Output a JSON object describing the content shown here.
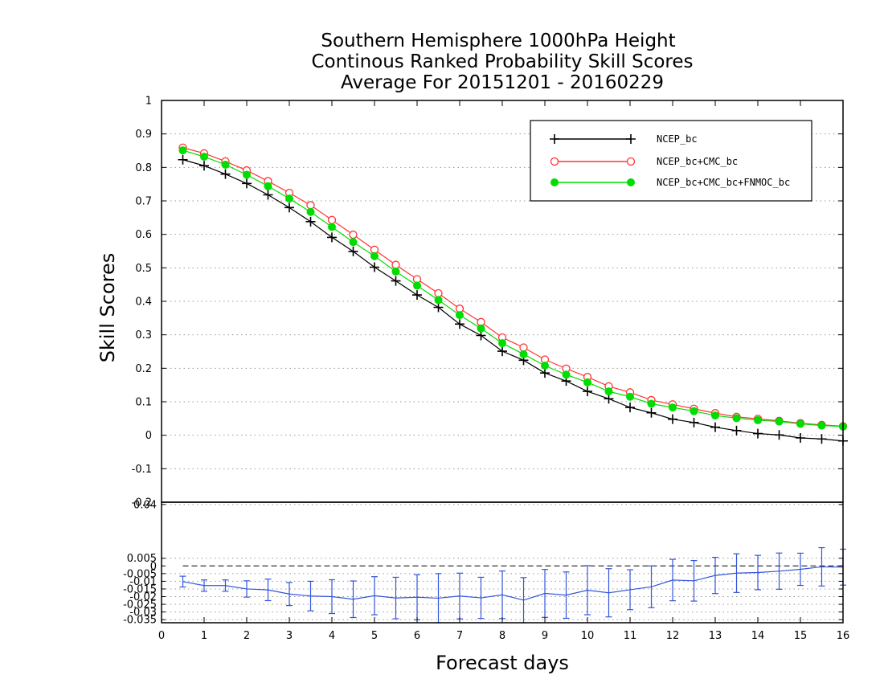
{
  "titles": {
    "line1": "Southern Hemisphere 1000hPa Height",
    "line2": "Continous Ranked Probability Skill Scores",
    "line3": "Average For 20151201 - 20160229"
  },
  "chart_data": [
    {
      "type": "line",
      "panel": "main",
      "ylabel": "Skill Scores",
      "ylim": [
        -0.2,
        1
      ],
      "yticks": [
        "1",
        "0.9",
        "0.8",
        "0.7",
        "0.6",
        "0.5",
        "0.4",
        "0.3",
        "0.2",
        "0.1",
        "0",
        "-0.1",
        "-0.2"
      ],
      "xlim": [
        0,
        16
      ],
      "grid": "horizontal dotted",
      "legend_position": "top-right",
      "x": [
        0.5,
        1,
        1.5,
        2,
        2.5,
        3,
        3.5,
        4,
        4.5,
        5,
        5.5,
        6,
        6.5,
        7,
        7.5,
        8,
        8.5,
        9,
        9.5,
        10,
        10.5,
        11,
        11.5,
        12,
        12.5,
        13,
        13.5,
        14,
        14.5,
        15,
        15.5,
        16
      ],
      "series": [
        {
          "name": "NCEP_bc",
          "color": "#000000",
          "marker": "plus",
          "values": [
            0.823,
            0.805,
            0.78,
            0.752,
            0.718,
            0.68,
            0.638,
            0.591,
            0.549,
            0.502,
            0.461,
            0.419,
            0.382,
            0.332,
            0.298,
            0.251,
            0.224,
            0.186,
            0.162,
            0.131,
            0.109,
            0.083,
            0.067,
            0.048,
            0.038,
            0.024,
            0.014,
            0.005,
            0.001,
            -0.008,
            -0.011,
            -0.017
          ]
        },
        {
          "name": "NCEP_bc+CMC_bc",
          "color": "#ff3333",
          "marker": "open-circle",
          "values": [
            0.859,
            0.842,
            0.818,
            0.791,
            0.759,
            0.724,
            0.687,
            0.643,
            0.599,
            0.554,
            0.509,
            0.466,
            0.424,
            0.378,
            0.338,
            0.292,
            0.262,
            0.226,
            0.199,
            0.174,
            0.146,
            0.128,
            0.105,
            0.092,
            0.079,
            0.066,
            0.055,
            0.049,
            0.043,
            0.036,
            0.031,
            0.027
          ]
        },
        {
          "name": "NCEP_bc+CMC_bc+FNMOC_bc",
          "color": "#00dd00",
          "marker": "filled-circle",
          "values": [
            0.851,
            0.832,
            0.808,
            0.778,
            0.744,
            0.707,
            0.667,
            0.622,
            0.577,
            0.535,
            0.489,
            0.447,
            0.404,
            0.359,
            0.319,
            0.275,
            0.242,
            0.208,
            0.181,
            0.158,
            0.131,
            0.115,
            0.094,
            0.083,
            0.072,
            0.059,
            0.051,
            0.045,
            0.041,
            0.034,
            0.029,
            0.026
          ]
        }
      ]
    },
    {
      "type": "line",
      "panel": "difference",
      "xlabel": "Forecast days",
      "ylim": [
        -0.037,
        0.0415
      ],
      "yticks": [
        "0.04",
        "0.005",
        "0",
        "-0.005",
        "-0.01",
        "-0.015",
        "-0.02",
        "-0.025",
        "-0.03",
        "-0.035"
      ],
      "xticks": [
        "0",
        "1",
        "2",
        "3",
        "4",
        "5",
        "6",
        "7",
        "8",
        "9",
        "10",
        "11",
        "12",
        "13",
        "14",
        "15",
        "16"
      ],
      "xlim": [
        0,
        16
      ],
      "grid": "horizontal dotted",
      "zero_line": "dashed",
      "x": [
        0.5,
        1,
        1.5,
        2,
        2.5,
        3,
        3.5,
        4,
        4.5,
        5,
        5.5,
        6,
        6.5,
        7,
        7.5,
        8,
        8.5,
        9,
        9.5,
        10,
        10.5,
        11,
        11.5,
        12,
        12.5,
        13,
        13.5,
        14,
        14.5,
        15,
        15.5,
        16
      ],
      "series": [
        {
          "color": "#3355dd",
          "marker": "error-bar",
          "values": [
            -0.0102,
            -0.0128,
            -0.0128,
            -0.015,
            -0.0156,
            -0.0183,
            -0.0196,
            -0.02,
            -0.0217,
            -0.0194,
            -0.0209,
            -0.0204,
            -0.021,
            -0.0196,
            -0.0208,
            -0.0188,
            -0.0223,
            -0.0179,
            -0.019,
            -0.0158,
            -0.0175,
            -0.0155,
            -0.0136,
            -0.0092,
            -0.0097,
            -0.0062,
            -0.0047,
            -0.0043,
            -0.0034,
            -0.0022,
            -0.0006,
            -0.0008
          ],
          "lower": [
            -0.0137,
            -0.0165,
            -0.0165,
            -0.0203,
            -0.0226,
            -0.0258,
            -0.0292,
            -0.031,
            -0.0336,
            -0.0318,
            -0.0344,
            -0.0351,
            -0.037,
            -0.0345,
            -0.0342,
            -0.0343,
            -0.037,
            -0.0335,
            -0.0341,
            -0.0318,
            -0.0332,
            -0.0285,
            -0.0272,
            -0.0227,
            -0.0229,
            -0.018,
            -0.0173,
            -0.0155,
            -0.0152,
            -0.0127,
            -0.0131,
            -0.0125
          ],
          "upper": [
            -0.0067,
            -0.0091,
            -0.0091,
            -0.0097,
            -0.0086,
            -0.0108,
            -0.01,
            -0.009,
            -0.0098,
            -0.007,
            -0.0074,
            -0.0057,
            -0.005,
            -0.0047,
            -0.0074,
            -0.0033,
            -0.0076,
            -0.0023,
            -0.0039,
            0.0002,
            -0.0018,
            -0.0025,
            -0.0,
            0.0043,
            0.0035,
            0.0056,
            0.0079,
            0.0069,
            0.0084,
            0.0083,
            0.0119,
            0.0109
          ]
        }
      ]
    }
  ]
}
